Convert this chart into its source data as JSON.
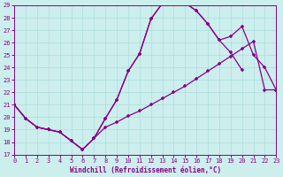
{
  "xlabel": "Windchill (Refroidissement éolien,°C)",
  "bg_color": "#cceeed",
  "grid_color": "#aadddd",
  "line_color": "#880088",
  "xmin": 0,
  "xmax": 23,
  "ymin": 17,
  "ymax": 29,
  "curve1_x": [
    0,
    1,
    2,
    3,
    4,
    5,
    6,
    7,
    8,
    9,
    10,
    11,
    12,
    13,
    14,
    15,
    16,
    17,
    18,
    19,
    20,
    21,
    22,
    23
  ],
  "curve1_y": [
    21.0,
    19.9,
    19.2,
    19.0,
    18.8,
    18.1,
    17.4,
    18.3,
    19.9,
    21.4,
    23.7,
    25.1,
    27.9,
    29.15,
    29.3,
    29.2,
    28.55,
    27.5,
    26.2,
    25.2,
    23.8,
    null,
    null,
    null
  ],
  "curve2_x": [
    0,
    1,
    2,
    3,
    4,
    5,
    6,
    7,
    8,
    9,
    10,
    11,
    12,
    13,
    14,
    15,
    16,
    17,
    18,
    19,
    20,
    21,
    22,
    23
  ],
  "curve2_y": [
    21.0,
    19.9,
    19.2,
    19.0,
    18.8,
    18.1,
    17.4,
    18.3,
    19.9,
    21.4,
    23.7,
    25.1,
    27.9,
    29.15,
    29.3,
    29.2,
    28.55,
    27.5,
    26.2,
    26.5,
    27.3,
    25.0,
    24.0,
    22.2
  ],
  "curve3_x": [
    0,
    1,
    2,
    3,
    4,
    5,
    6,
    7,
    8,
    9,
    10,
    11,
    12,
    13,
    14,
    15,
    16,
    17,
    18,
    19,
    20,
    21,
    22,
    23
  ],
  "curve3_y": [
    21.0,
    19.9,
    19.2,
    19.0,
    18.8,
    18.1,
    17.4,
    18.3,
    19.2,
    19.6,
    20.1,
    20.5,
    21.0,
    21.5,
    22.0,
    22.5,
    23.1,
    23.7,
    24.3,
    24.9,
    25.5,
    26.1,
    22.2,
    22.2
  ]
}
